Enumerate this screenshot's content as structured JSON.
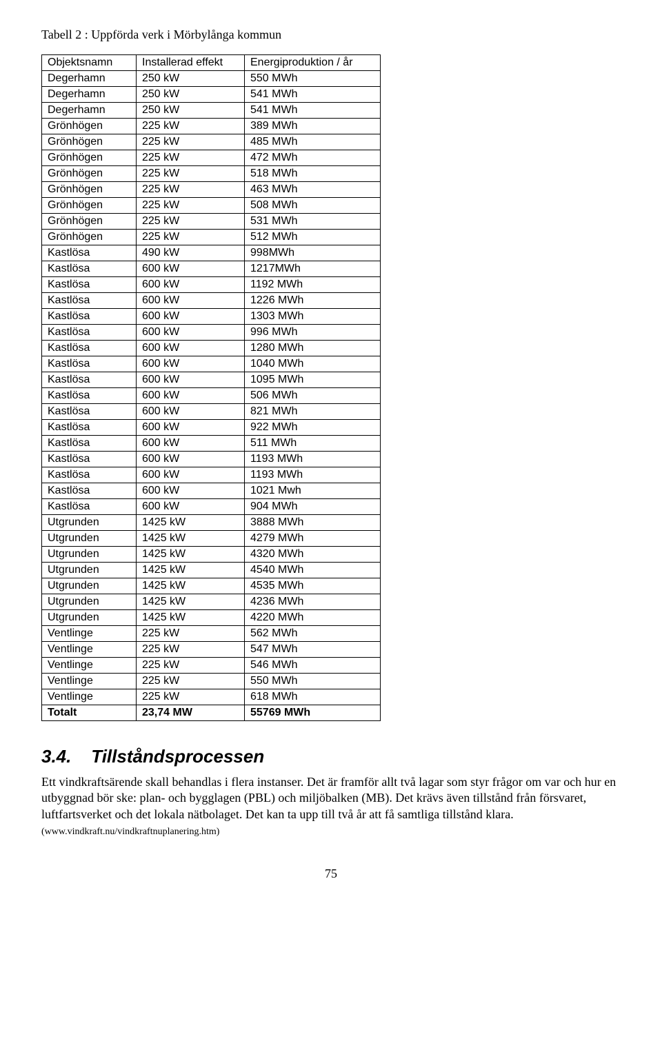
{
  "caption": "Tabell 2 : Uppförda verk i Mörbylånga kommun",
  "table": {
    "headers": [
      "Objektsnamn",
      "Installerad effekt",
      "Energiproduktion / år"
    ],
    "rows": [
      [
        "Degerhamn",
        "250 kW",
        "550 MWh"
      ],
      [
        "Degerhamn",
        "250 kW",
        "541 MWh"
      ],
      [
        "Degerhamn",
        "250 kW",
        "541 MWh"
      ],
      [
        "Grönhögen",
        "225 kW",
        "389 MWh"
      ],
      [
        "Grönhögen",
        "225 kW",
        "485 MWh"
      ],
      [
        "Grönhögen",
        "225 kW",
        "472 MWh"
      ],
      [
        "Grönhögen",
        "225 kW",
        "518 MWh"
      ],
      [
        "Grönhögen",
        "225 kW",
        "463 MWh"
      ],
      [
        "Grönhögen",
        "225 kW",
        "508 MWh"
      ],
      [
        "Grönhögen",
        "225 kW",
        "531 MWh"
      ],
      [
        "Grönhögen",
        "225 kW",
        "512 MWh"
      ],
      [
        "Kastlösa",
        "490 kW",
        "998MWh"
      ],
      [
        "Kastlösa",
        "600 kW",
        "1217MWh"
      ],
      [
        "Kastlösa",
        "600 kW",
        "1192 MWh"
      ],
      [
        "Kastlösa",
        "600 kW",
        "1226 MWh"
      ],
      [
        "Kastlösa",
        "600 kW",
        "1303 MWh"
      ],
      [
        "Kastlösa",
        "600 kW",
        "996 MWh"
      ],
      [
        "Kastlösa",
        "600 kW",
        "1280 MWh"
      ],
      [
        "Kastlösa",
        "600 kW",
        "1040 MWh"
      ],
      [
        "Kastlösa",
        "600 kW",
        "1095 MWh"
      ],
      [
        "Kastlösa",
        "600 kW",
        "506 MWh"
      ],
      [
        "Kastlösa",
        "600 kW",
        "821 MWh"
      ],
      [
        "Kastlösa",
        "600 kW",
        "922 MWh"
      ],
      [
        "Kastlösa",
        "600 kW",
        "511 MWh"
      ],
      [
        "Kastlösa",
        "600 kW",
        "1193 MWh"
      ],
      [
        "Kastlösa",
        "600 kW",
        "1193 MWh"
      ],
      [
        "Kastlösa",
        "600 kW",
        "1021 Mwh"
      ],
      [
        "Kastlösa",
        "600 kW",
        "904 MWh"
      ],
      [
        "Utgrunden",
        "1425 kW",
        "3888 MWh"
      ],
      [
        "Utgrunden",
        "1425 kW",
        "4279 MWh"
      ],
      [
        "Utgrunden",
        "1425 kW",
        "4320 MWh"
      ],
      [
        "Utgrunden",
        "1425 kW",
        "4540 MWh"
      ],
      [
        "Utgrunden",
        "1425 kW",
        "4535 MWh"
      ],
      [
        "Utgrunden",
        "1425 kW",
        "4236 MWh"
      ],
      [
        "Utgrunden",
        "1425 kW",
        "4220 MWh"
      ],
      [
        "Ventlinge",
        "225 kW",
        "562 MWh"
      ],
      [
        "Ventlinge",
        "225 kW",
        "547 MWh"
      ],
      [
        "Ventlinge",
        "225 kW",
        "546 MWh"
      ],
      [
        "Ventlinge",
        "225 kW",
        "550 MWh"
      ],
      [
        "Ventlinge",
        "225 kW",
        "618 MWh"
      ]
    ],
    "total": [
      "Totalt",
      "23,74 MW",
      "55769 MWh"
    ]
  },
  "section": {
    "number": "3.4.",
    "title": "Tillståndsprocessen"
  },
  "paragraph": "Ett vindkraftsärende skall behandlas i flera instanser. Det är framför allt två lagar som styr frågor om var och hur en utbyggnad bör ske: plan- och bygglagen (PBL) och miljöbalken (MB). Det krävs även tillstånd från försvaret, luftfartsverket och det lokala nätbolaget. Det kan ta upp till två år att få samtliga tillstånd klara.",
  "citation": "(www.vindkraft.nu/vindkraftnuplanering.htm)",
  "page_number": "75"
}
